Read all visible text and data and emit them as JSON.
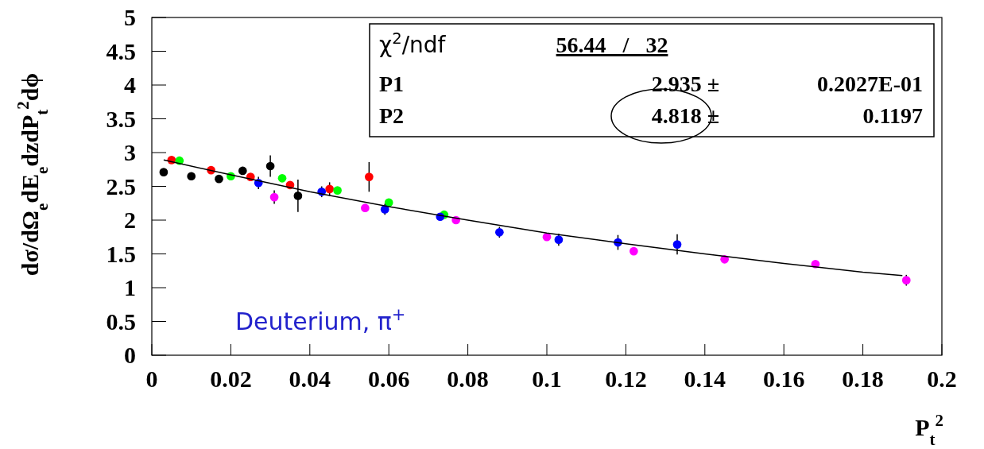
{
  "chart_data": {
    "type": "scatter",
    "xlabel": "P$_{t}$$^{2}$",
    "ylabel": "dσ/dΩ$_{e}$dE$_{e}$dzdP$_{t}$$^{2}$dϕ",
    "xlim": [
      0,
      0.2
    ],
    "xticks": [
      0,
      0.02,
      0.04,
      0.06,
      0.08,
      0.1,
      0.12,
      0.14,
      0.16,
      0.18,
      0.2
    ],
    "ylim": [
      0,
      5
    ],
    "yticks": [
      0,
      0.5,
      1,
      1.5,
      2,
      2.5,
      3,
      3.5,
      4,
      4.5,
      5
    ],
    "grid": false,
    "marker": "circle",
    "annotations": [
      "χ$^{2}$/ndf",
      "56.44   /   32",
      "P1",
      "2.935 ±",
      "0.2027E-01",
      "P2",
      "4.818 ±",
      "0.1197",
      "Deuterium, π$^{+}$"
    ],
    "series": [
      {
        "color": "#000000",
        "x": [
          0.003,
          0.01,
          0.017,
          0.023,
          0.03,
          0.037
        ],
        "values": [
          2.71,
          2.65,
          2.61,
          2.73,
          2.8,
          2.36
        ],
        "errors": [
          null,
          null,
          null,
          null,
          0.16,
          0.24
        ]
      },
      {
        "color": "#ff0000",
        "x": [
          0.005,
          0.015,
          0.025,
          0.035,
          0.045,
          0.055
        ],
        "values": [
          2.89,
          2.74,
          2.64,
          2.52,
          2.46,
          2.64
        ],
        "errors": [
          null,
          null,
          null,
          null,
          0.1,
          0.22
        ]
      },
      {
        "color": "#00ff00",
        "x": [
          0.007,
          0.02,
          0.033,
          0.047,
          0.06,
          0.074
        ],
        "values": [
          2.88,
          2.65,
          2.62,
          2.44,
          2.26,
          2.08
        ]
      },
      {
        "color": "#0000ff",
        "x": [
          0.027,
          0.043,
          0.059,
          0.073,
          0.088,
          0.103,
          0.118,
          0.133
        ],
        "values": [
          2.55,
          2.42,
          2.16,
          2.05,
          1.82,
          1.71,
          1.67,
          1.64
        ],
        "errors": [
          0.09,
          0.08,
          0.08,
          null,
          0.08,
          0.09,
          0.11,
          0.15
        ]
      },
      {
        "color": "#ff00ff",
        "x": [
          0.031,
          0.054,
          0.077,
          0.1,
          0.122,
          0.145,
          0.168,
          0.191
        ],
        "values": [
          2.34,
          2.18,
          2.0,
          1.75,
          1.54,
          1.42,
          1.35,
          1.11
        ],
        "errors": [
          0.1,
          null,
          null,
          null,
          null,
          null,
          null,
          0.08
        ]
      },
      {
        "type": "line",
        "color": "#000000",
        "marker": "none",
        "x": [
          0.003,
          0.02,
          0.04,
          0.06,
          0.08,
          0.1,
          0.12,
          0.14,
          0.16,
          0.18,
          0.19
        ],
        "values": [
          2.89,
          2.67,
          2.42,
          2.2,
          2.0,
          1.81,
          1.65,
          1.5,
          1.36,
          1.23,
          1.18
        ]
      }
    ]
  }
}
